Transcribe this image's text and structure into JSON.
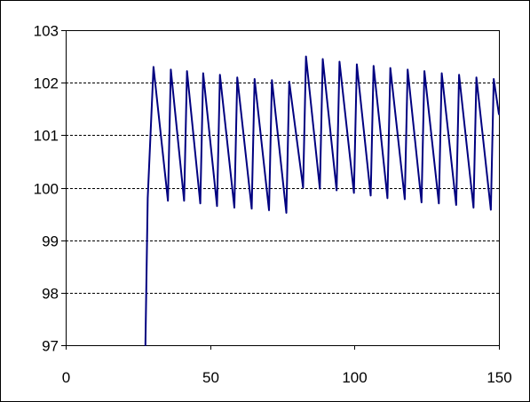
{
  "chart_data": {
    "type": "line",
    "title": "",
    "xlabel": "",
    "ylabel": "",
    "xlim": [
      0,
      150
    ],
    "ylim": [
      97,
      103
    ],
    "xticks": [
      0,
      50,
      100,
      150
    ],
    "xtick_labels": [
      "0",
      "50",
      "100",
      "150"
    ],
    "yticks": [
      97,
      98,
      99,
      100,
      101,
      102,
      103
    ],
    "ytick_labels": [
      "97",
      "98",
      "99",
      "100",
      101,
      "102",
      "103"
    ],
    "grid": {
      "y": true,
      "x": false,
      "style": "dashed"
    },
    "legend": "none",
    "series": [
      {
        "color": "#000080",
        "points": [
          [
            27.6,
            97.0
          ],
          [
            28.4,
            99.8
          ],
          [
            30.4,
            102.3
          ],
          [
            35.4,
            99.75
          ],
          [
            36.4,
            102.25
          ],
          [
            41.0,
            99.75
          ],
          [
            42.0,
            102.22
          ],
          [
            46.6,
            99.7
          ],
          [
            47.6,
            102.18
          ],
          [
            52.4,
            99.65
          ],
          [
            53.4,
            102.15
          ],
          [
            58.4,
            99.62
          ],
          [
            59.4,
            102.1
          ],
          [
            64.4,
            99.6
          ],
          [
            65.4,
            102.07
          ],
          [
            70.4,
            99.57
          ],
          [
            71.4,
            102.05
          ],
          [
            76.4,
            99.52
          ],
          [
            77.4,
            102.02
          ],
          [
            82.2,
            100.0
          ],
          [
            83.2,
            102.5
          ],
          [
            88.0,
            99.98
          ],
          [
            89.0,
            102.45
          ],
          [
            93.8,
            99.95
          ],
          [
            94.8,
            102.4
          ],
          [
            99.8,
            99.9
          ],
          [
            100.8,
            102.35
          ],
          [
            105.6,
            99.85
          ],
          [
            106.6,
            102.32
          ],
          [
            111.4,
            99.8
          ],
          [
            112.4,
            102.28
          ],
          [
            117.4,
            99.78
          ],
          [
            118.4,
            102.25
          ],
          [
            123.2,
            99.72
          ],
          [
            124.2,
            102.22
          ],
          [
            129.2,
            99.7
          ],
          [
            130.2,
            102.18
          ],
          [
            135.2,
            99.67
          ],
          [
            136.2,
            102.15
          ],
          [
            141.2,
            99.62
          ],
          [
            142.2,
            102.1
          ],
          [
            147.2,
            99.58
          ],
          [
            148.2,
            102.07
          ],
          [
            150.0,
            101.4
          ]
        ]
      }
    ]
  }
}
